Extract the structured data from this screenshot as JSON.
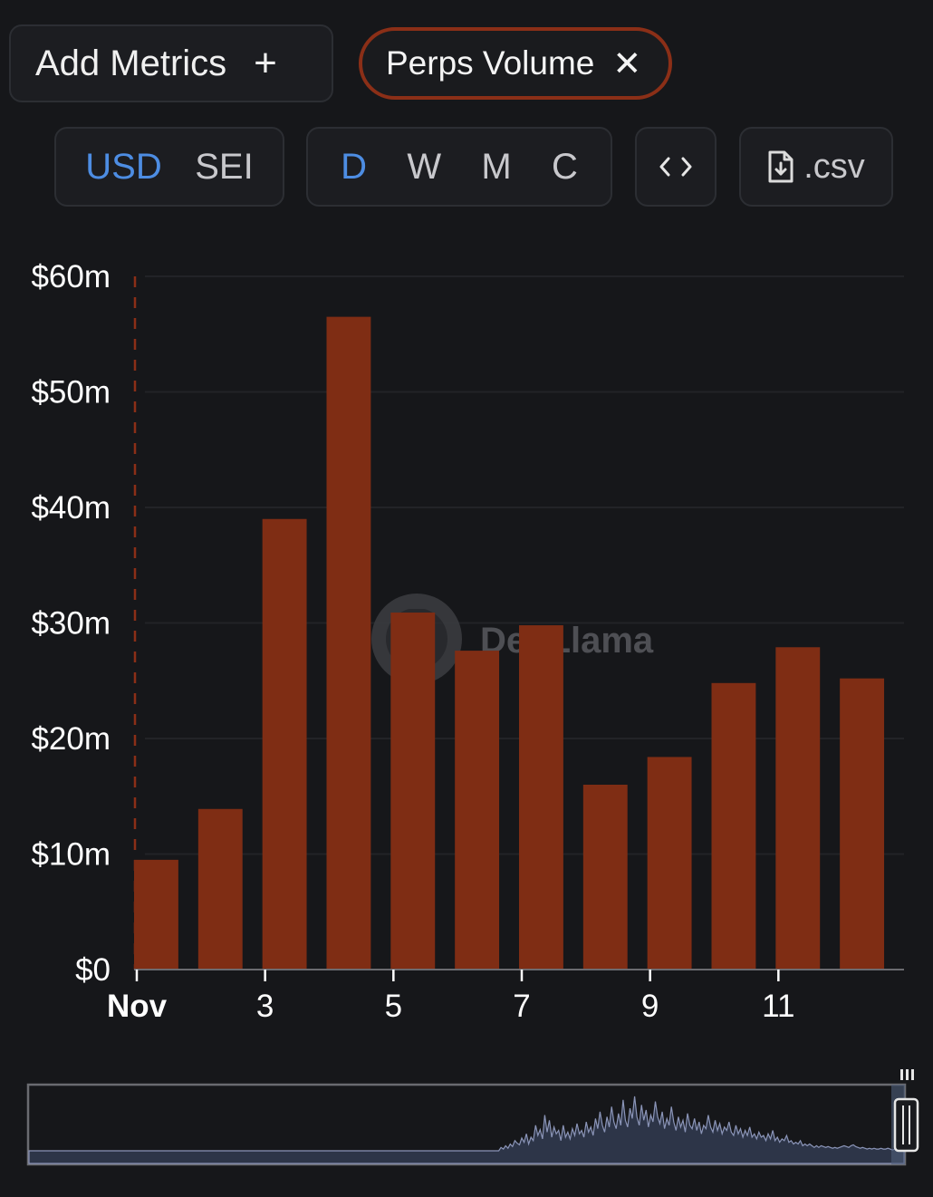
{
  "toolbar": {
    "add_metrics_label": "Add Metrics",
    "add_icon": "+",
    "metric_pill_label": "Perps Volume",
    "remove_icon": "✕",
    "currency_options": [
      "USD",
      "SEI"
    ],
    "currency_selected": "USD",
    "period_options": [
      "D",
      "W",
      "M",
      "C"
    ],
    "period_selected": "D",
    "embed_icon": "<>",
    "csv_label": ".csv",
    "accent_color": "#4d8de3",
    "pill_border_color": "#8b2f17"
  },
  "watermark": "DefiLlama",
  "chart_data": {
    "type": "bar",
    "title": "",
    "series": [
      {
        "name": "Perps Volume",
        "color": "#7f2d14",
        "values": [
          9.5,
          13.9,
          39,
          56.5,
          30.9,
          27.6,
          29.8,
          16,
          18.4,
          24.8,
          27.9,
          25.2
        ]
      }
    ],
    "categories": [
      "Nov 1",
      "Nov 2",
      "Nov 3",
      "Nov 4",
      "Nov 5",
      "Nov 6",
      "Nov 7",
      "Nov 8",
      "Nov 9",
      "Nov 10",
      "Nov 11",
      "Nov 12"
    ],
    "x_tick_labels": [
      "Nov",
      "3",
      "5",
      "7",
      "9",
      "11"
    ],
    "y_tick_labels": [
      "$0",
      "$10m",
      "$20m",
      "$30m",
      "$40m",
      "$50m",
      "$60m"
    ],
    "y_ticks": [
      0,
      10,
      20,
      30,
      40,
      50,
      60
    ],
    "ylim": [
      0,
      60
    ],
    "yunit": "$m",
    "grid": true,
    "brush": {
      "overview": [
        0,
        0,
        0,
        0,
        0,
        0,
        0,
        0,
        0,
        0,
        0,
        0,
        0,
        0,
        0,
        0,
        0,
        0,
        0,
        0,
        0,
        0,
        0,
        0,
        0,
        0,
        0,
        0,
        0,
        0,
        0,
        0,
        0,
        0,
        0,
        0,
        0,
        0,
        0,
        0,
        0,
        0,
        0,
        0,
        0,
        0,
        0,
        0,
        0,
        0,
        0,
        0,
        0,
        0,
        0,
        0,
        0,
        0,
        0,
        0,
        0,
        0,
        0,
        0,
        0,
        0,
        0,
        0,
        0,
        0,
        0,
        0,
        0,
        0,
        0,
        0,
        0,
        0,
        0,
        0,
        0,
        0,
        0,
        0,
        0,
        0,
        0,
        0,
        0,
        0,
        0,
        0,
        0,
        0,
        0,
        0,
        0,
        0,
        0,
        0,
        0,
        0,
        0,
        0,
        0,
        0,
        0,
        0,
        0,
        0,
        0,
        0,
        0,
        0,
        0,
        0,
        0,
        0,
        0,
        0,
        0,
        0,
        0,
        0,
        0,
        0,
        0,
        0,
        0,
        0,
        0,
        0,
        0,
        0,
        0,
        0,
        0,
        0,
        0,
        0,
        0,
        0,
        0,
        0,
        0,
        0,
        0,
        0,
        0,
        0,
        0,
        0,
        0,
        0,
        0,
        0,
        0,
        0,
        0,
        0,
        0,
        0,
        0,
        0,
        0,
        0,
        0,
        0,
        0,
        0,
        0,
        0,
        0,
        0,
        0,
        0,
        0,
        0,
        0,
        0,
        0,
        0,
        0,
        0,
        0,
        0,
        0,
        0,
        0,
        0,
        0,
        0,
        0,
        0,
        0,
        0,
        0,
        0,
        0,
        0,
        0,
        0,
        0,
        0,
        0,
        4,
        2,
        6,
        3,
        8,
        5,
        12,
        9,
        7,
        15,
        10,
        20,
        8,
        16,
        12,
        30,
        18,
        25,
        14,
        42,
        22,
        36,
        16,
        28,
        20,
        24,
        12,
        30,
        16,
        22,
        14,
        26,
        18,
        32,
        20,
        24,
        16,
        34,
        22,
        28,
        18,
        38,
        26,
        46,
        30,
        22,
        40,
        28,
        52,
        34,
        26,
        44,
        30,
        60,
        36,
        28,
        50,
        38,
        64,
        40,
        30,
        54,
        36,
        48,
        28,
        42,
        34,
        58,
        40,
        32,
        46,
        26,
        38,
        30,
        52,
        34,
        24,
        40,
        28,
        36,
        22,
        44,
        30,
        26,
        38,
        24,
        34,
        20,
        30,
        26,
        42,
        28,
        22,
        36,
        24,
        32,
        20,
        28,
        24,
        34,
        22,
        18,
        30,
        20,
        26,
        16,
        24,
        18,
        28,
        16,
        20,
        14,
        22,
        16,
        18,
        12,
        20,
        14,
        24,
        12,
        16,
        10,
        14,
        12,
        18,
        10,
        12,
        8,
        10,
        8,
        12,
        6,
        8,
        6,
        8,
        6,
        4,
        6,
        4,
        6,
        5,
        4,
        5,
        4,
        3,
        4,
        3,
        4,
        5,
        6,
        5,
        4,
        6,
        7,
        5,
        4,
        3,
        4,
        3,
        2,
        3,
        2,
        3,
        2,
        2,
        3,
        2,
        2,
        3,
        2,
        1,
        2,
        3,
        4,
        5,
        6
      ]
    }
  }
}
